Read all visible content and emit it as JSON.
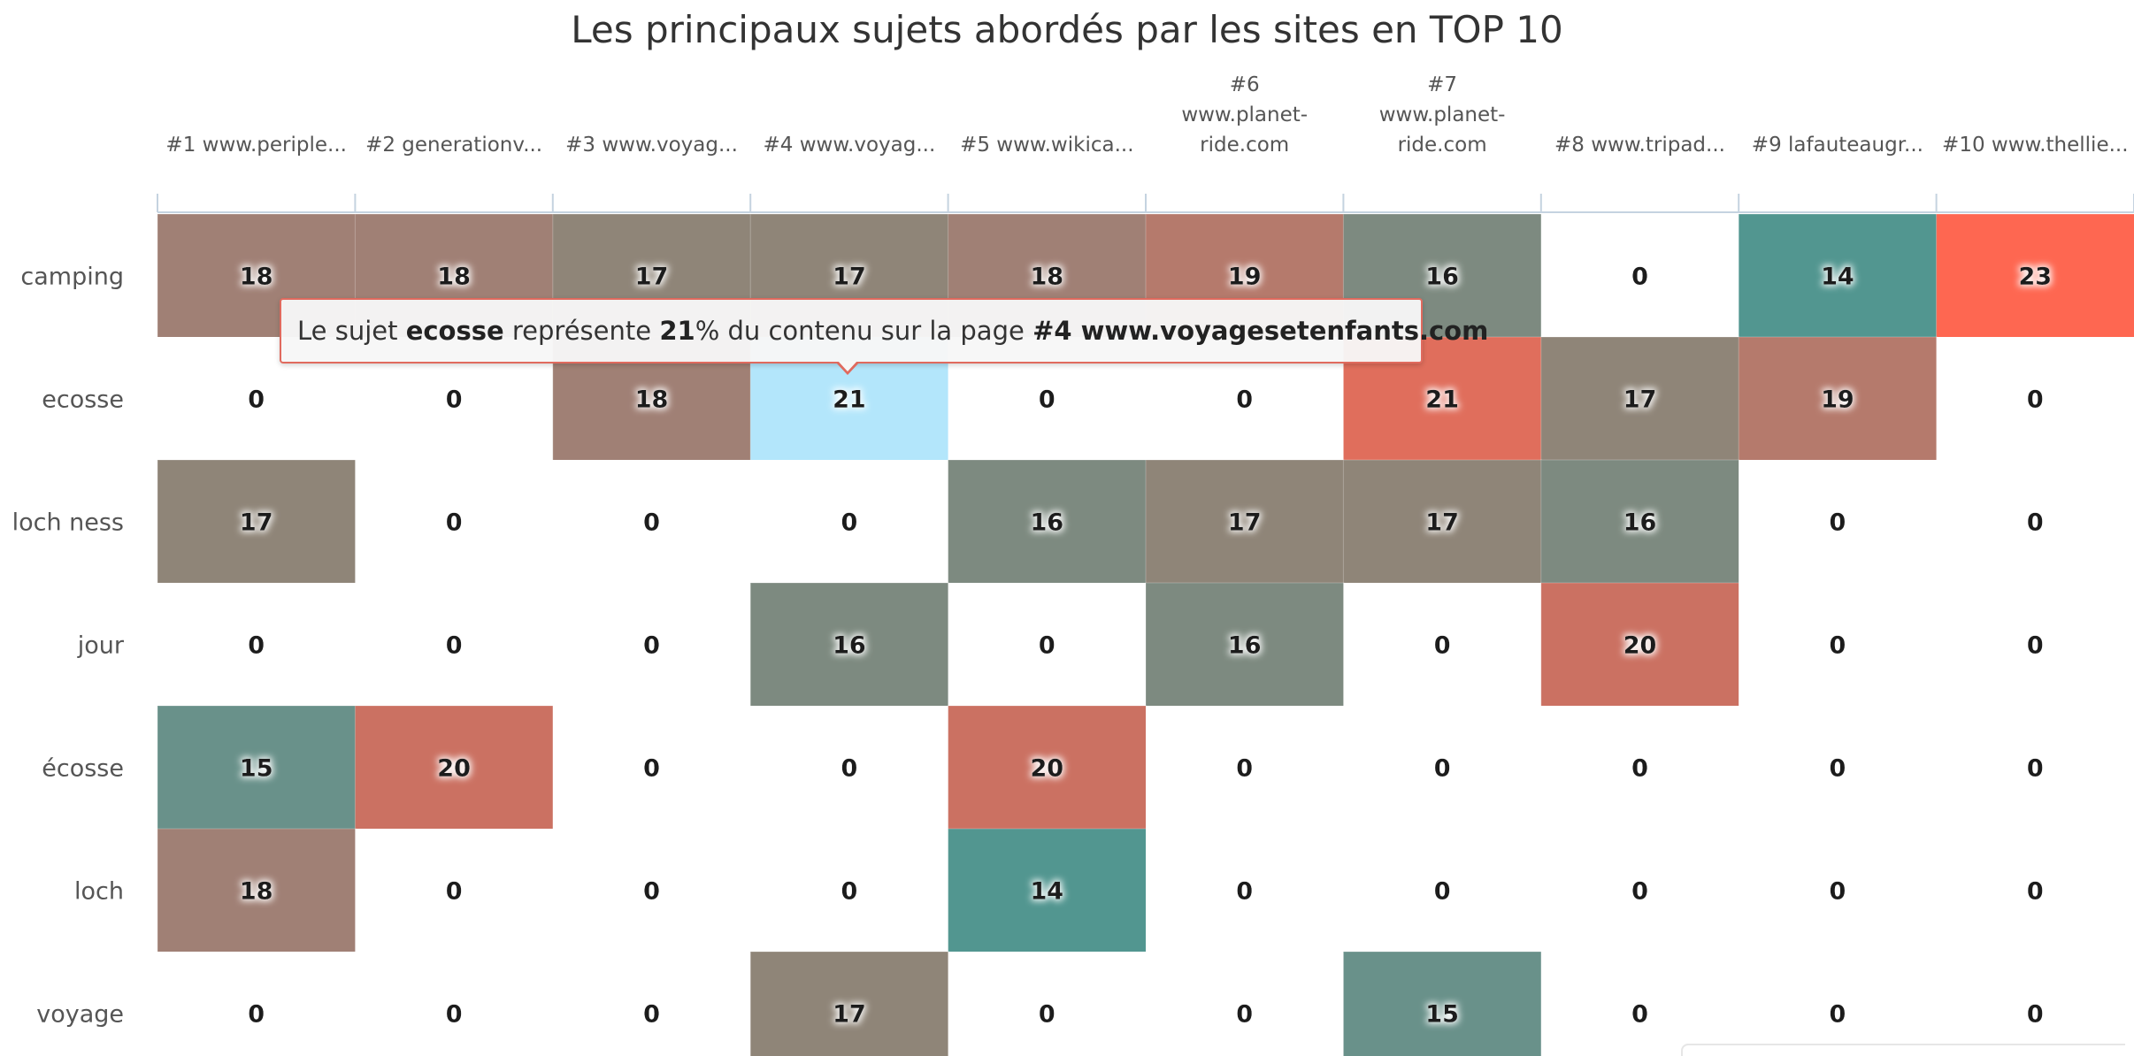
{
  "chart_data": {
    "type": "heatmap",
    "title": "Les principaux sujets abordés par les sites en TOP 10",
    "columns": [
      "#1 www.periple...",
      "#2 generationv...",
      "#3 www.voyag...",
      "#4 www.voyag...",
      "#5 www.wikica...",
      "#6 www.planet-ride.com",
      "#7 www.planet-ride.com",
      "#8 www.tripad...",
      "#9 lafauteaugr...",
      "#10 www.thellie..."
    ],
    "rows": [
      "camping",
      "ecosse",
      "loch ness",
      "jour",
      "écosse",
      "loch",
      "voyage"
    ],
    "values": [
      [
        18,
        18,
        17,
        17,
        18,
        19,
        16,
        0,
        14,
        23
      ],
      [
        0,
        0,
        18,
        21,
        0,
        0,
        21,
        17,
        19,
        0
      ],
      [
        17,
        0,
        0,
        0,
        16,
        17,
        17,
        16,
        0,
        0
      ],
      [
        0,
        0,
        0,
        16,
        0,
        16,
        0,
        20,
        0,
        0
      ],
      [
        15,
        20,
        0,
        0,
        20,
        0,
        0,
        0,
        0,
        0
      ],
      [
        18,
        0,
        0,
        0,
        14,
        0,
        0,
        0,
        0,
        0
      ],
      [
        0,
        0,
        0,
        17,
        0,
        0,
        15,
        0,
        0,
        0
      ]
    ],
    "highlight_cell": {
      "row": 1,
      "col": 3
    },
    "colors": {
      "zero": "#ffffff",
      "highlight": "#b3e6fb",
      "by_value": {
        "14": "#529690",
        "15": "#69918a",
        "16": "#7d8a80",
        "17": "#8f8578",
        "18": "#a08075",
        "19": "#b57a6c",
        "20": "#cb7162",
        "21": "#e06e5c",
        "23": "#fe6751"
      },
      "text": "#1a1a1a",
      "axis_line": "#c5d3e0"
    }
  },
  "tooltip": {
    "prefix": "Le sujet ",
    "topic": "ecosse",
    "middle": " représente ",
    "value": "21",
    "after_value": "% du contenu sur la page ",
    "page": "#4 www.voyagesetenfants.com"
  }
}
